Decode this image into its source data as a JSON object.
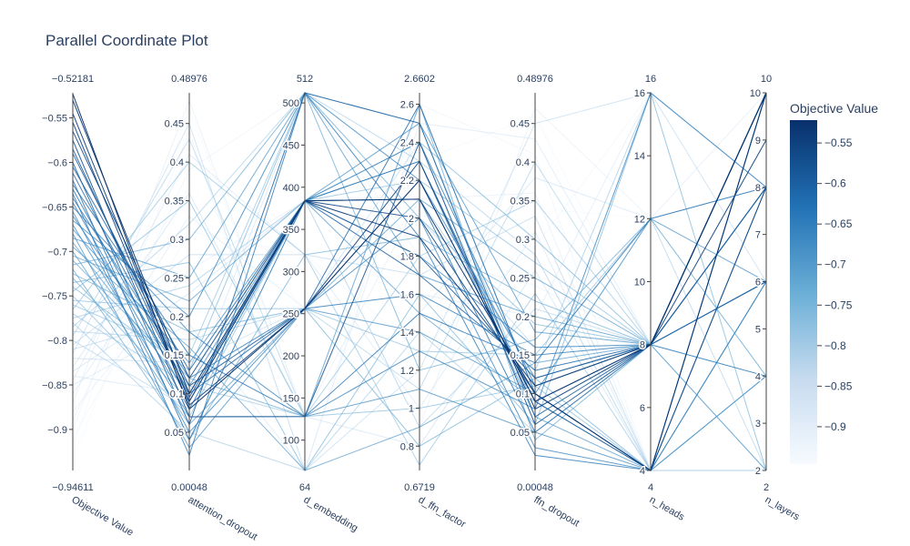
{
  "chart_data": {
    "type": "parallel_coordinates",
    "title": "Parallel Coordinate Plot",
    "colorscale": {
      "title": "Objective Value",
      "min": -0.94611,
      "max": -0.52181,
      "low_color": "#f7fbff",
      "mid_color": "#6aaed6",
      "high_color": "#08306b",
      "ticks": [
        -0.55,
        -0.6,
        -0.65,
        -0.7,
        -0.75,
        -0.8,
        -0.85,
        -0.9
      ],
      "tick_labels": [
        "−0.55",
        "−0.6",
        "−0.65",
        "−0.7",
        "−0.75",
        "−0.8",
        "−0.85",
        "−0.9"
      ]
    },
    "axes": [
      {
        "label": "Objective Value",
        "min": -0.94611,
        "max": -0.52181,
        "min_label": "−0.94611",
        "max_label": "−0.52181",
        "ticks": [
          -0.55,
          -0.6,
          -0.65,
          -0.7,
          -0.75,
          -0.8,
          -0.85,
          -0.9
        ],
        "tick_labels": [
          "−0.55",
          "−0.6",
          "−0.65",
          "−0.7",
          "−0.75",
          "−0.8",
          "−0.85",
          "−0.9"
        ]
      },
      {
        "label": "attention_dropout",
        "min": 0.00048,
        "max": 0.48976,
        "min_label": "0.00048",
        "max_label": "0.48976",
        "ticks": [
          0.05,
          0.1,
          0.15,
          0.2,
          0.25,
          0.3,
          0.35,
          0.4,
          0.45
        ],
        "tick_labels": [
          "0.05",
          "0.1",
          "0.15",
          "0.2",
          "0.25",
          "0.3",
          "0.35",
          "0.4",
          "0.45"
        ]
      },
      {
        "label": "d_embedding",
        "min": 64,
        "max": 512,
        "min_label": "64",
        "max_label": "512",
        "ticks": [
          100,
          150,
          200,
          250,
          300,
          350,
          400,
          450,
          500
        ],
        "tick_labels": [
          "100",
          "150",
          "200",
          "250",
          "300",
          "350",
          "400",
          "450",
          "500"
        ]
      },
      {
        "label": "d_ffn_factor",
        "min": 0.6719,
        "max": 2.6602,
        "min_label": "0.6719",
        "max_label": "2.6602",
        "ticks": [
          0.8,
          1,
          1.2,
          1.4,
          1.6,
          1.8,
          2,
          2.2,
          2.4,
          2.6
        ],
        "tick_labels": [
          "0.8",
          "1",
          "1.2",
          "1.4",
          "1.6",
          "1.8",
          "2",
          "2.2",
          "2.4",
          "2.6"
        ]
      },
      {
        "label": "ffn_dropout",
        "min": 0.00048,
        "max": 0.48976,
        "min_label": "0.00048",
        "max_label": "0.48976",
        "ticks": [
          0.05,
          0.1,
          0.15,
          0.2,
          0.25,
          0.3,
          0.35,
          0.4,
          0.45
        ],
        "tick_labels": [
          "0.05",
          "0.1",
          "0.15",
          "0.2",
          "0.25",
          "0.3",
          "0.35",
          "0.4",
          "0.45"
        ]
      },
      {
        "label": "n_heads",
        "min": 4,
        "max": 16,
        "min_label": "4",
        "max_label": "16",
        "ticks": [
          4,
          6,
          8,
          10,
          12,
          14,
          16
        ],
        "tick_labels": [
          "4",
          "6",
          "8",
          "10",
          "12",
          "14",
          "16"
        ]
      },
      {
        "label": "n_layers",
        "min": 2,
        "max": 10,
        "min_label": "2",
        "max_label": "10",
        "ticks": [
          2,
          3,
          4,
          5,
          6,
          7,
          8,
          9,
          10
        ],
        "tick_labels": [
          "2",
          "3",
          "4",
          "5",
          "6",
          "7",
          "8",
          "9",
          "10"
        ]
      }
    ],
    "trials": [
      [
        -0.523,
        0.08,
        256,
        2.2,
        0.09,
        8,
        10
      ],
      [
        -0.53,
        0.1,
        384,
        2.1,
        0.1,
        4,
        10
      ],
      [
        -0.545,
        0.09,
        384,
        1.9,
        0.11,
        8,
        9
      ],
      [
        -0.555,
        0.085,
        256,
        2.3,
        0.08,
        8,
        10
      ],
      [
        -0.565,
        0.12,
        384,
        2.0,
        0.1,
        4,
        8
      ],
      [
        -0.575,
        0.07,
        128,
        2.4,
        0.06,
        8,
        10
      ],
      [
        -0.585,
        0.095,
        384,
        1.8,
        0.12,
        8,
        8
      ],
      [
        -0.59,
        0.11,
        256,
        2.2,
        0.09,
        4,
        10
      ],
      [
        -0.6,
        0.06,
        512,
        2.5,
        0.07,
        8,
        6
      ],
      [
        -0.605,
        0.13,
        384,
        1.7,
        0.13,
        8,
        10
      ],
      [
        -0.612,
        0.1,
        256,
        2.6,
        0.1,
        4,
        8
      ],
      [
        -0.62,
        0.04,
        384,
        2.1,
        0.05,
        8,
        10
      ],
      [
        -0.625,
        0.15,
        128,
        1.5,
        0.14,
        12,
        8
      ],
      [
        -0.63,
        0.09,
        384,
        2.3,
        0.09,
        8,
        6
      ],
      [
        -0.635,
        0.02,
        512,
        1.9,
        0.02,
        4,
        10
      ],
      [
        -0.64,
        0.12,
        256,
        1.6,
        0.15,
        8,
        4
      ],
      [
        -0.645,
        0.08,
        384,
        2.4,
        0.11,
        8,
        10
      ],
      [
        -0.65,
        0.18,
        128,
        1.3,
        0.08,
        16,
        8
      ],
      [
        -0.655,
        0.05,
        256,
        2.0,
        0.03,
        4,
        6
      ],
      [
        -0.66,
        0.11,
        384,
        1.8,
        0.16,
        8,
        10
      ],
      [
        -0.665,
        0.2,
        512,
        2.2,
        0.12,
        8,
        8
      ],
      [
        -0.67,
        0.07,
        128,
        1.1,
        0.05,
        4,
        4
      ],
      [
        -0.675,
        0.14,
        384,
        2.5,
        0.18,
        8,
        10
      ],
      [
        -0.68,
        0.03,
        256,
        1.4,
        0.1,
        12,
        6
      ],
      [
        -0.685,
        0.25,
        512,
        1.7,
        0.2,
        8,
        8
      ],
      [
        -0.69,
        0.1,
        384,
        2.3,
        0.07,
        4,
        10
      ],
      [
        -0.695,
        0.16,
        64,
        0.9,
        0.14,
        8,
        2
      ],
      [
        -0.7,
        0.06,
        256,
        2.1,
        0.25,
        8,
        8
      ],
      [
        -0.705,
        0.22,
        384,
        1.5,
        0.09,
        4,
        6
      ],
      [
        -0.71,
        0.12,
        128,
        2.6,
        0.04,
        8,
        10
      ],
      [
        -0.715,
        0.3,
        512,
        1.2,
        0.17,
        12,
        4
      ],
      [
        -0.72,
        0.04,
        320,
        1.9,
        0.22,
        8,
        8
      ],
      [
        -0.725,
        0.18,
        256,
        0.8,
        0.12,
        4,
        6
      ],
      [
        -0.73,
        0.09,
        384,
        2.4,
        0.3,
        8,
        10
      ],
      [
        -0.735,
        0.27,
        64,
        1.6,
        0.06,
        16,
        2
      ],
      [
        -0.74,
        0.13,
        512,
        2.0,
        0.19,
        8,
        8
      ],
      [
        -0.745,
        0.35,
        128,
        1.0,
        0.11,
        4,
        4
      ],
      [
        -0.75,
        0.07,
        384,
        2.2,
        0.27,
        8,
        6
      ],
      [
        -0.755,
        0.21,
        256,
        1.3,
        0.15,
        12,
        8
      ],
      [
        -0.76,
        0.15,
        512,
        2.5,
        0.08,
        8,
        10
      ],
      [
        -0.765,
        0.4,
        320,
        0.7,
        0.23,
        4,
        2
      ],
      [
        -0.77,
        0.11,
        128,
        1.8,
        0.35,
        8,
        6
      ],
      [
        -0.775,
        0.24,
        384,
        2.1,
        0.13,
        16,
        8
      ],
      [
        -0.78,
        0.05,
        64,
        1.4,
        0.05,
        8,
        4
      ],
      [
        -0.785,
        0.32,
        512,
        2.3,
        0.28,
        4,
        10
      ],
      [
        -0.79,
        0.17,
        256,
        1.1,
        0.4,
        8,
        6
      ],
      [
        -0.795,
        0.43,
        128,
        2.6,
        0.1,
        12,
        2
      ],
      [
        -0.8,
        0.08,
        384,
        0.9,
        0.21,
        8,
        8
      ],
      [
        -0.805,
        0.28,
        320,
        1.7,
        0.33,
        4,
        4
      ],
      [
        -0.81,
        0.2,
        512,
        2.0,
        0.16,
        8,
        10
      ],
      [
        -0.815,
        0.45,
        64,
        1.2,
        0.45,
        16,
        6
      ],
      [
        -0.82,
        0.14,
        256,
        2.4,
        0.07,
        8,
        2
      ],
      [
        -0.83,
        0.36,
        128,
        0.8,
        0.26,
        4,
        8
      ],
      [
        -0.835,
        0.23,
        384,
        1.5,
        0.38,
        12,
        4
      ],
      [
        -0.84,
        0.1,
        512,
        2.2,
        0.12,
        8,
        10
      ],
      [
        -0.845,
        0.41,
        320,
        1.0,
        0.31,
        4,
        6
      ],
      [
        -0.85,
        0.19,
        64,
        2.5,
        0.43,
        8,
        2
      ],
      [
        -0.86,
        0.33,
        256,
        1.6,
        0.2,
        16,
        8
      ],
      [
        -0.87,
        0.48,
        128,
        2.1,
        0.36,
        4,
        4
      ],
      [
        -0.88,
        0.26,
        384,
        0.9,
        0.47,
        12,
        10
      ],
      [
        -0.89,
        0.39,
        512,
        1.8,
        0.24,
        8,
        6
      ],
      [
        -0.9,
        0.44,
        64,
        2.6,
        0.41,
        4,
        2
      ],
      [
        -0.91,
        0.31,
        320,
        1.3,
        0.29,
        16,
        8
      ],
      [
        -0.92,
        0.47,
        128,
        2.3,
        0.46,
        8,
        4
      ],
      [
        -0.93,
        0.37,
        256,
        0.7,
        0.34,
        12,
        10
      ],
      [
        -0.94,
        0.42,
        512,
        1.9,
        0.48,
        4,
        6
      ],
      [
        -0.946,
        0.29,
        64,
        1.1,
        0.39,
        8,
        2
      ]
    ]
  }
}
